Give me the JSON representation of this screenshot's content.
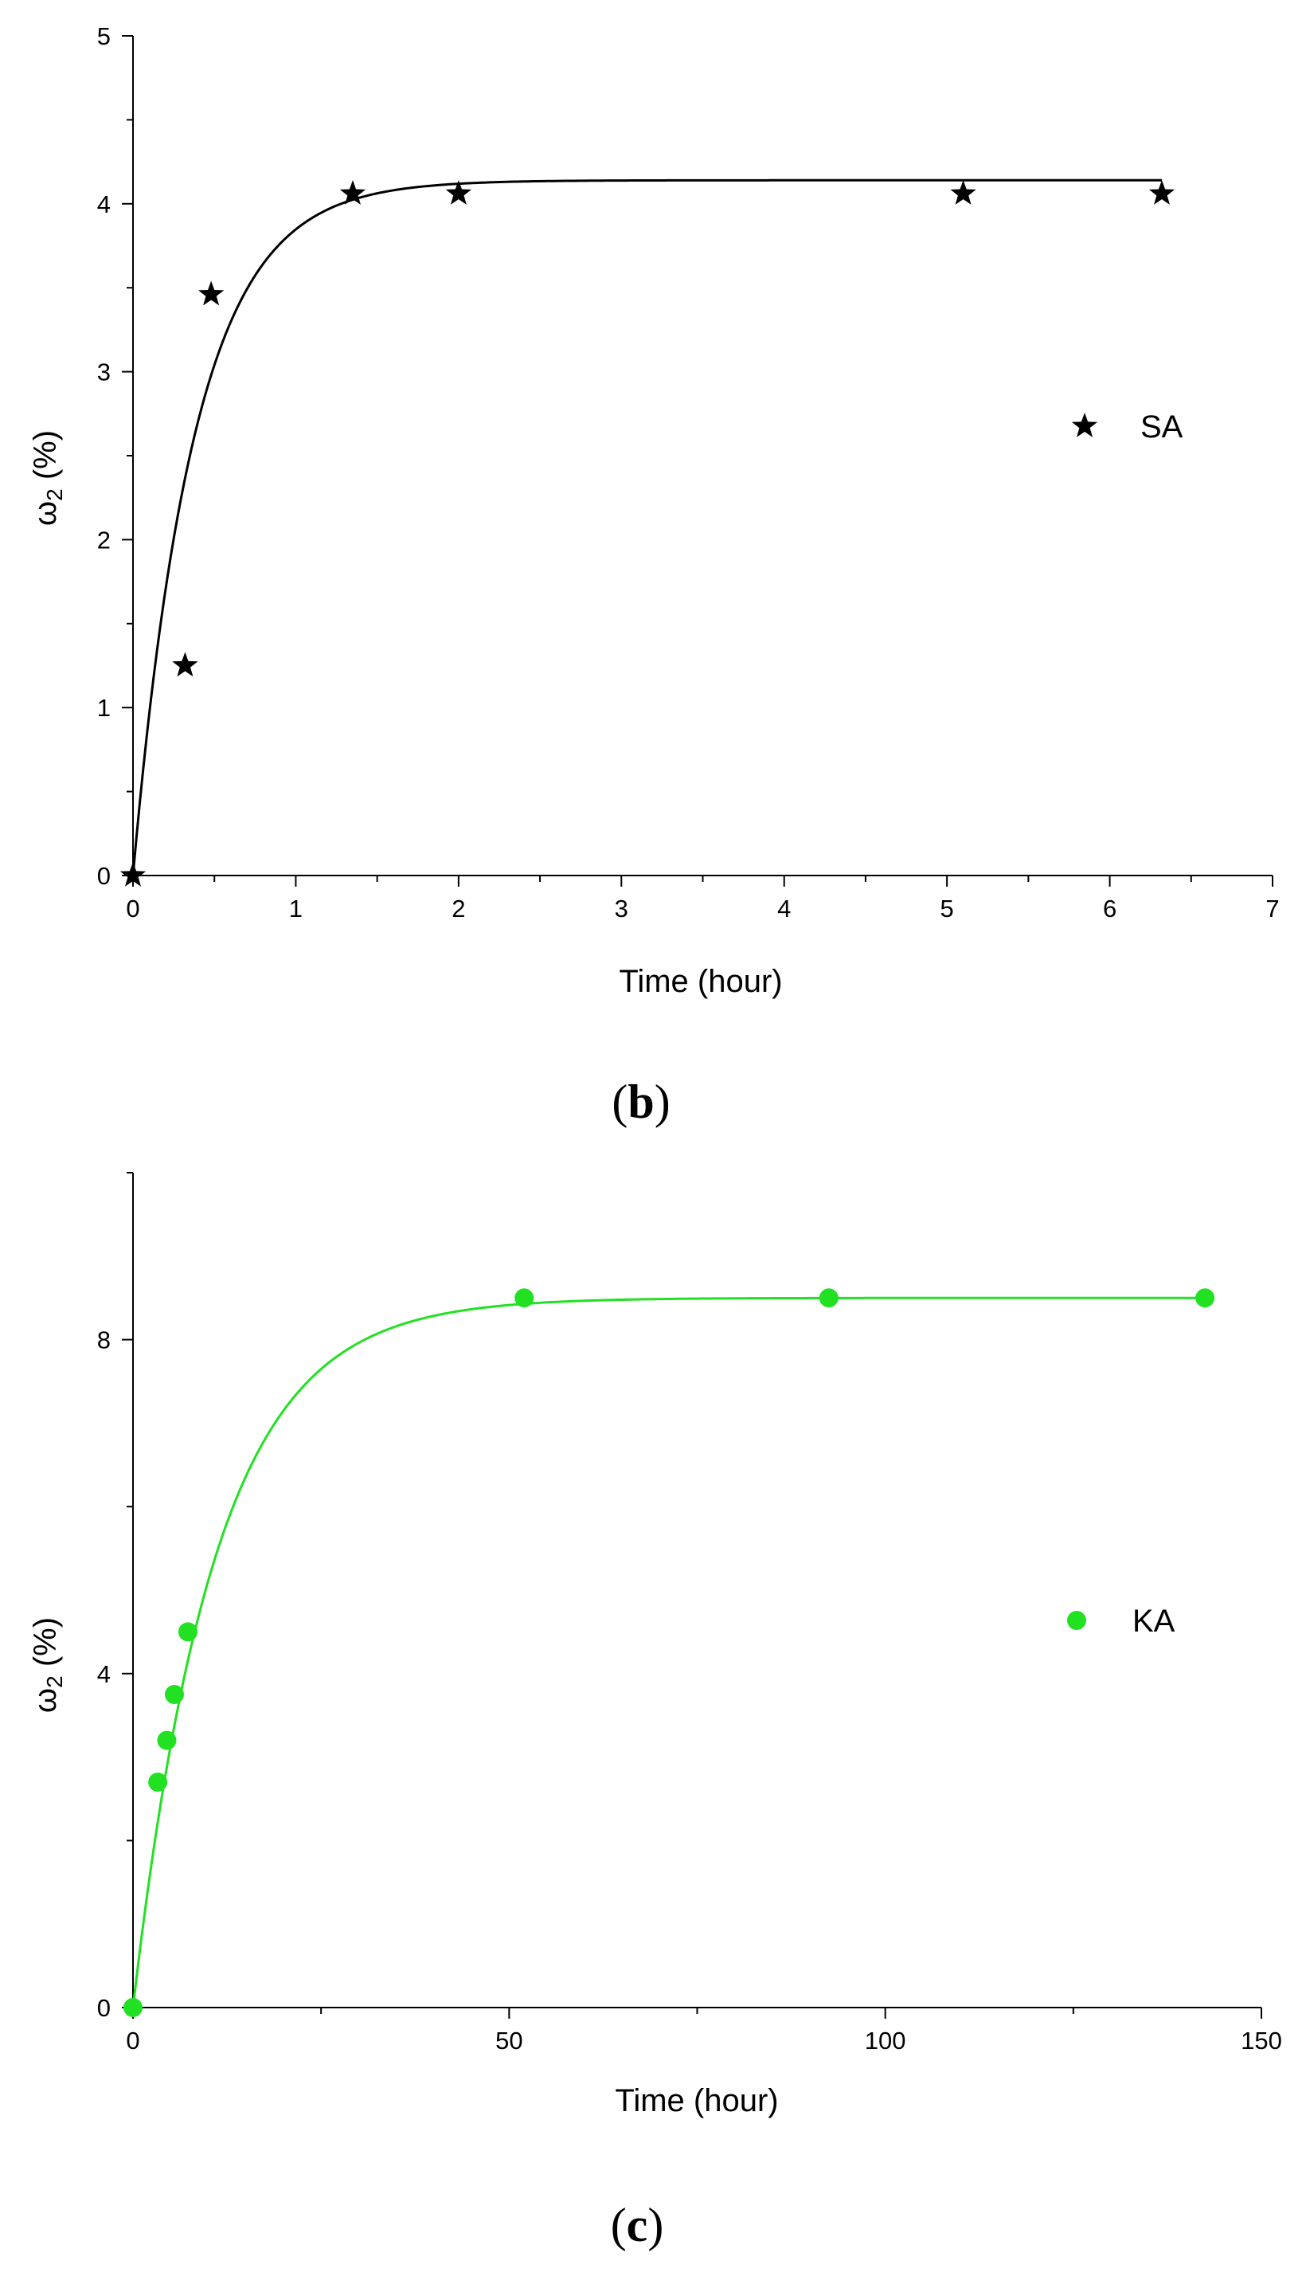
{
  "chart_data": [
    {
      "type": "scatter",
      "panel_label": "b",
      "title": "",
      "xlabel": "Time (hour)",
      "ylabel_main": "ω",
      "ylabel_sub": "2",
      "ylabel_rest": " (%)",
      "xlim": [
        0,
        7
      ],
      "ylim": [
        0,
        5
      ],
      "xticks": [
        0,
        1,
        2,
        3,
        4,
        5,
        6,
        7
      ],
      "yticks": [
        0,
        1,
        2,
        3,
        4,
        5
      ],
      "grid": false,
      "legend_position": "center-right",
      "series": [
        {
          "name": "SA",
          "marker": "star",
          "color": "#000000",
          "points": [
            {
              "x": 0,
              "y": 0
            },
            {
              "x": 0.32,
              "y": 1.25
            },
            {
              "x": 0.48,
              "y": 3.46
            },
            {
              "x": 1.35,
              "y": 4.06
            },
            {
              "x": 2.0,
              "y": 4.06
            },
            {
              "x": 5.1,
              "y": 4.06
            },
            {
              "x": 6.32,
              "y": 4.06
            }
          ],
          "fit": {
            "type": "exponential",
            "color": "#000000",
            "A": 4.14,
            "k": 2.65,
            "x_start": 0,
            "x_end": 6.32
          }
        }
      ]
    },
    {
      "type": "scatter",
      "panel_label": "c",
      "title": "",
      "xlabel": "Time (hour)",
      "ylabel_main": "ω",
      "ylabel_sub": "2",
      "ylabel_rest": " (%)",
      "xlim": [
        0,
        150
      ],
      "ylim": [
        0,
        10
      ],
      "xticks": [
        0,
        50,
        100,
        150
      ],
      "yticks": [
        0,
        4,
        8
      ],
      "grid": false,
      "legend_position": "center-right",
      "series": [
        {
          "name": "KA",
          "marker": "circle",
          "color": "#22e022",
          "points": [
            {
              "x": 0,
              "y": 0
            },
            {
              "x": 3.3,
              "y": 2.7
            },
            {
              "x": 4.5,
              "y": 3.2
            },
            {
              "x": 5.5,
              "y": 3.75
            },
            {
              "x": 7.3,
              "y": 4.5
            },
            {
              "x": 52,
              "y": 8.5
            },
            {
              "x": 92.5,
              "y": 8.5
            },
            {
              "x": 142.5,
              "y": 8.5
            }
          ],
          "fit": {
            "type": "exponential",
            "color": "#22e022",
            "A": 8.5,
            "k": 0.092,
            "x_start": 0,
            "x_end": 142.5
          }
        }
      ]
    }
  ]
}
